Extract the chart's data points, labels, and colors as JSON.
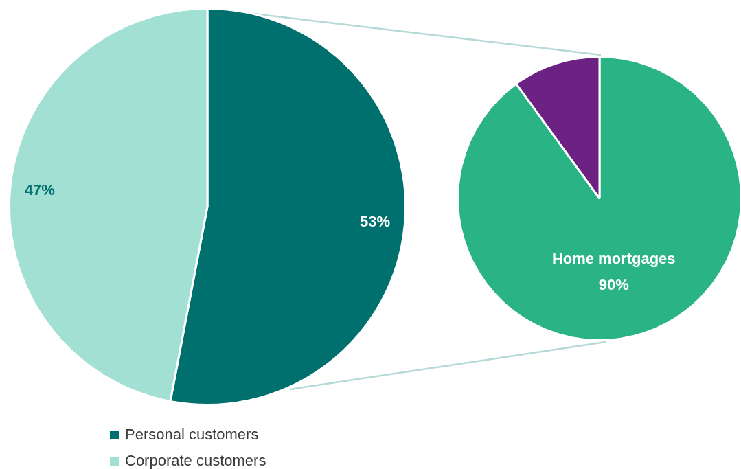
{
  "chart_data": [
    {
      "type": "pie",
      "categories": [
        "Personal customers",
        "Corporate customers"
      ],
      "values": [
        53,
        47
      ],
      "colors": [
        "#00706e",
        "#a3e0d4"
      ],
      "value_labels": [
        "53%",
        "47%"
      ],
      "legend": "bottom left"
    },
    {
      "type": "pie",
      "categories": [
        "Home mortgages",
        null
      ],
      "values": [
        90,
        10
      ],
      "colors": [
        "#2ab384",
        "#6c2282"
      ],
      "value_labels": [
        "90%",
        null
      ]
    }
  ]
}
